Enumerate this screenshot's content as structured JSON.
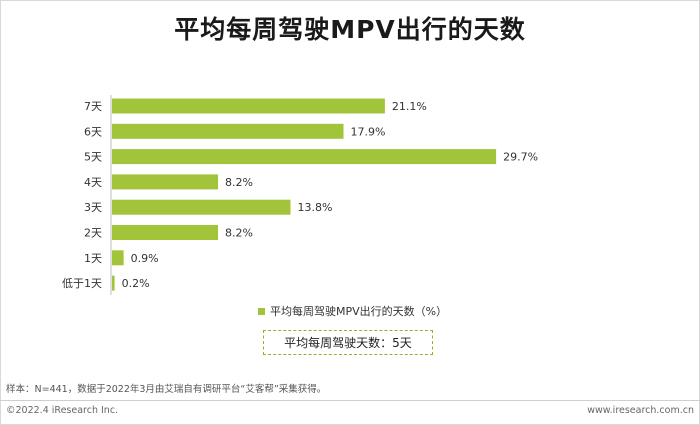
{
  "chart_data": {
    "type": "bar",
    "orientation": "horizontal",
    "title": "平均每周驾驶MPV出行的天数",
    "categories": [
      "7天",
      "6天",
      "5天",
      "4天",
      "3天",
      "2天",
      "1天",
      "低于1天"
    ],
    "values": [
      21.1,
      17.9,
      29.7,
      8.2,
      13.8,
      8.2,
      0.9,
      0.2
    ],
    "value_labels": [
      "21.1%",
      "17.9%",
      "29.7%",
      "8.2%",
      "13.8%",
      "8.2%",
      "0.9%",
      "0.2%"
    ],
    "legend": "平均每周驾驶MPV出行的天数（%）",
    "legend_position": "bottom",
    "color": "#a2c43a",
    "xlim": [
      0,
      30
    ],
    "grid": false
  },
  "summary": "平均每周驾驶天数：5天",
  "source_note": "样本：N=441，数据于2022年3月由艾瑞自有调研平台“艾客帮”采集获得。",
  "footer": {
    "copyright": "©2022.4 iResearch Inc.",
    "website": "www.iresearch.com.cn"
  }
}
